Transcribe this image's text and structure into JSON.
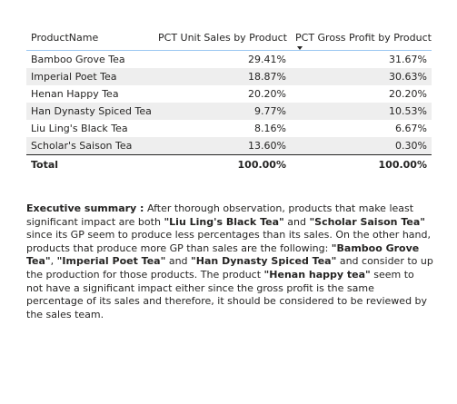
{
  "table": {
    "headers": [
      "ProductName",
      "PCT Unit Sales by Product",
      "PCT Gross Profit by Product"
    ],
    "rows": [
      {
        "name": "Bamboo Grove Tea",
        "unit_sales": "29.41%",
        "gross_profit": "31.67%"
      },
      {
        "name": "Imperial Poet Tea",
        "unit_sales": "18.87%",
        "gross_profit": "30.63%"
      },
      {
        "name": "Henan Happy Tea",
        "unit_sales": "20.20%",
        "gross_profit": "20.20%"
      },
      {
        "name": "Han Dynasty Spiced Tea",
        "unit_sales": "9.77%",
        "gross_profit": "10.53%"
      },
      {
        "name": "Liu Ling's Black Tea",
        "unit_sales": "8.16%",
        "gross_profit": "6.67%"
      },
      {
        "name": "Scholar's Saison Tea",
        "unit_sales": "13.60%",
        "gross_profit": "0.30%"
      }
    ],
    "total": {
      "label": "Total",
      "unit_sales": "100.00%",
      "gross_profit": "100.00%"
    },
    "sorted_column": "PCT Gross Profit by Product",
    "sort_direction": "descending"
  },
  "summary": {
    "heading": "Executive summary :",
    "p1": " After thorough observation, products that make least significant impact are both ",
    "b1": "\"Liu Ling's Black Tea\"",
    "p2": " and ",
    "b2": "\"Scholar Saison Tea\"",
    "p3": " since its GP seem to produce less percentages than its sales. On the other hand, products that produce more GP than sales are the following: ",
    "b3": "\"Bamboo Grove Tea\"",
    "p4": ", ",
    "b4": "\"Imperial Poet Tea\"",
    "p5": " and ",
    "b5": "\"Han Dynasty Spiced Tea\"",
    "p6": " and consider to up the production for those products. The product ",
    "b6": "\"Henan happy tea\"",
    "p7": " seem to not have a significant impact either since the gross profit is the same percentage of its sales and therefore, it should be considered to be reviewed by the sales team."
  }
}
